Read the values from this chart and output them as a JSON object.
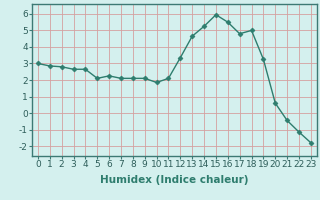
{
  "x": [
    0,
    1,
    2,
    3,
    4,
    5,
    6,
    7,
    8,
    9,
    10,
    11,
    12,
    13,
    14,
    15,
    16,
    17,
    18,
    19,
    20,
    21,
    22,
    23
  ],
  "y": [
    3.0,
    2.85,
    2.8,
    2.65,
    2.65,
    2.1,
    2.25,
    2.1,
    2.1,
    2.1,
    1.85,
    2.1,
    3.35,
    4.65,
    5.25,
    5.95,
    5.5,
    4.8,
    5.0,
    3.25,
    0.6,
    -0.45,
    -1.15,
    -1.8
  ],
  "line_color": "#2e7d6e",
  "marker": "D",
  "marker_size": 2.5,
  "line_width": 1.0,
  "bg_color": "#d4f0ee",
  "grid_color": "#d4a0a0",
  "xlabel": "Humidex (Indice chaleur)",
  "xlabel_fontsize": 7.5,
  "xlabel_fontweight": "bold",
  "ylabel_ticks": [
    -2,
    -1,
    0,
    1,
    2,
    3,
    4,
    5,
    6
  ],
  "xlim": [
    -0.5,
    23.5
  ],
  "ylim": [
    -2.6,
    6.6
  ],
  "tick_fontsize": 6.5,
  "spine_color": "#3d7a74"
}
